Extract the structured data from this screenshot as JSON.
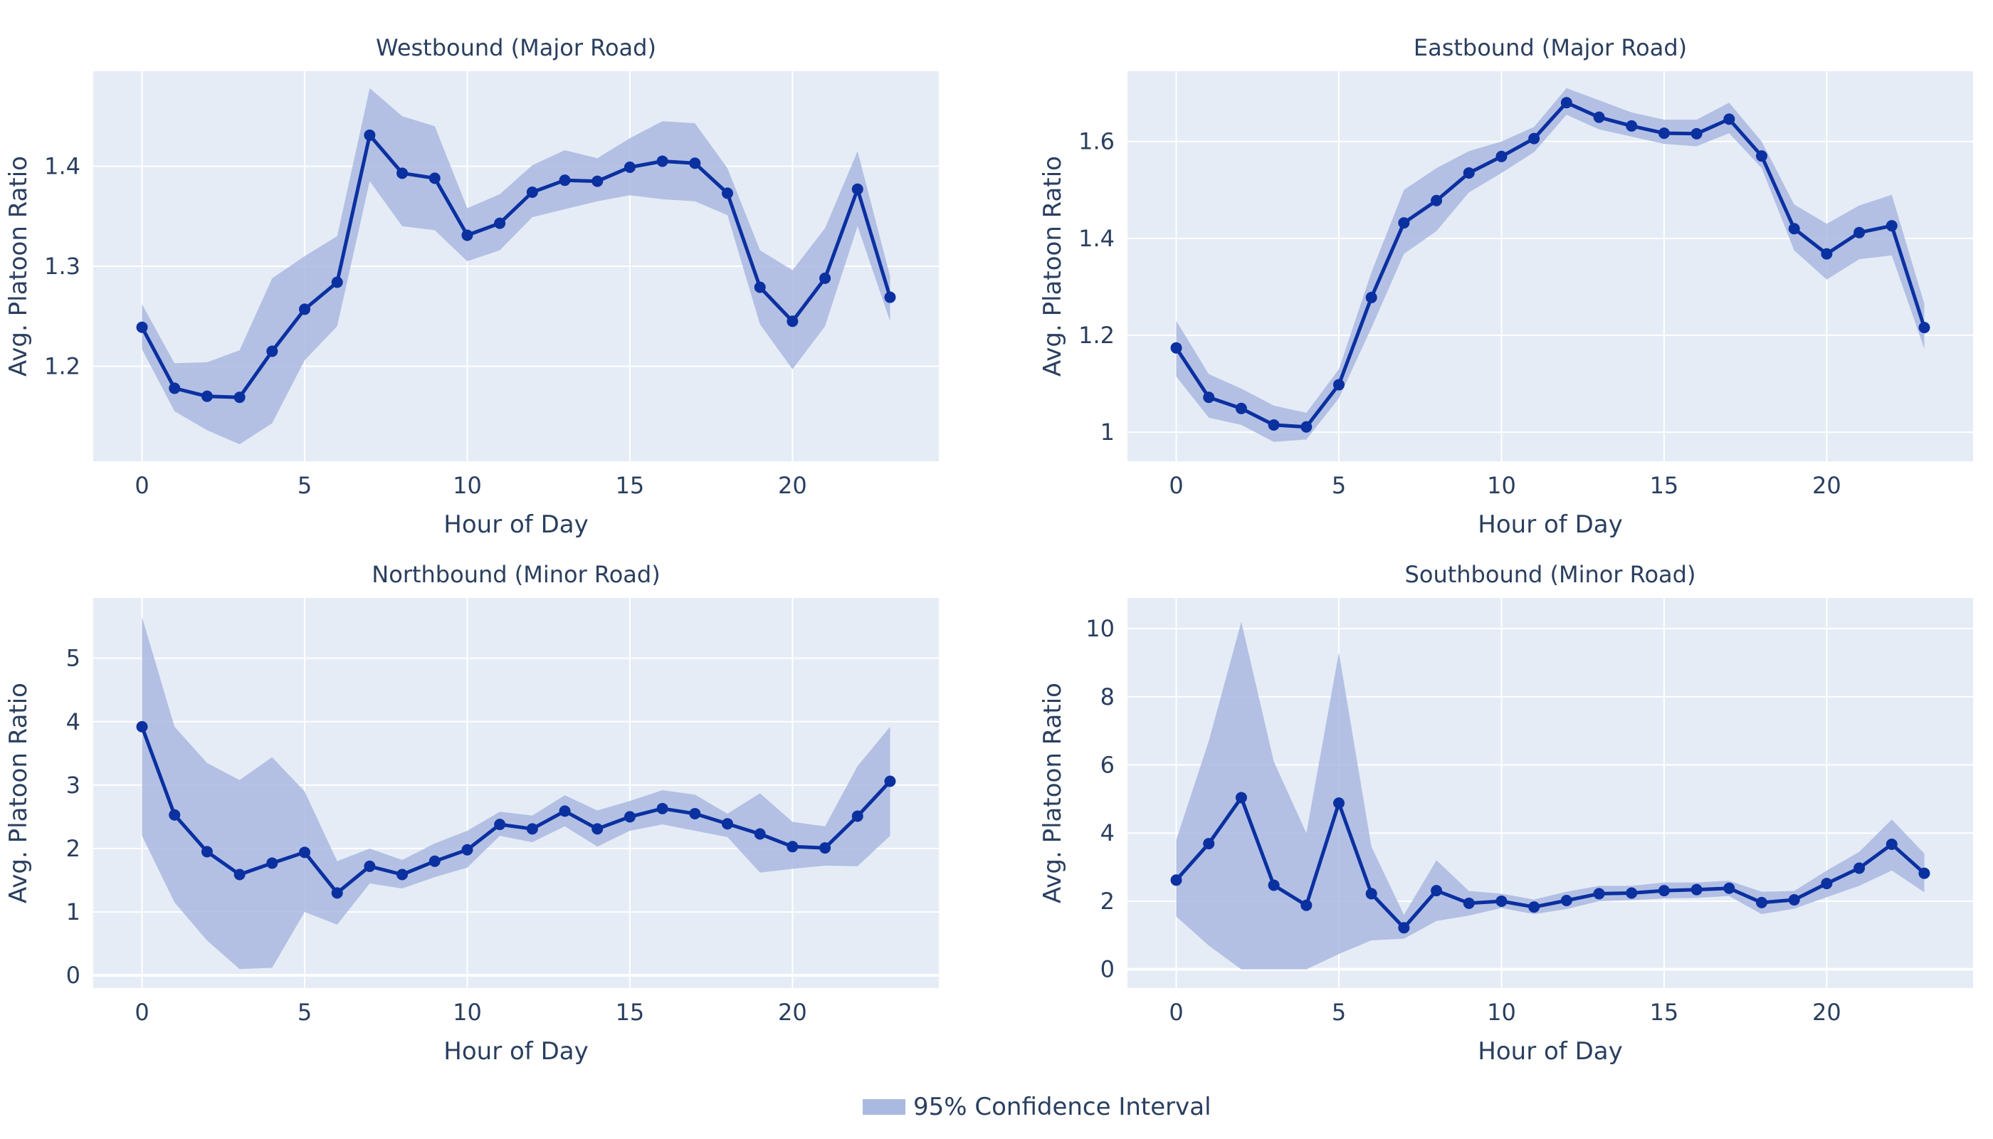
{
  "colors": {
    "plot_bg": "#e5ecf6",
    "grid": "#ffffff",
    "line": "#0b30a0",
    "band": "#aab9e0",
    "text": "#2a3f5f"
  },
  "legend": {
    "ci_label": "95% Confidence Interval",
    "placement": "bottom-center"
  },
  "chart_data": [
    {
      "type": "line",
      "title": "Westbound (Major Road)",
      "xlabel": "Hour of Day",
      "ylabel": "Avg. Platoon Ratio",
      "xlim": [
        -1.5,
        24.5
      ],
      "ylim": [
        1.105,
        1.495
      ],
      "xticks": [
        0,
        5,
        10,
        15,
        20
      ],
      "yticks": [
        1.2,
        1.3,
        1.4
      ],
      "ytick_labels": [
        "1.2",
        "1.3",
        "1.4"
      ],
      "x": [
        0,
        1,
        2,
        3,
        4,
        5,
        6,
        7,
        8,
        9,
        10,
        11,
        12,
        13,
        14,
        15,
        16,
        17,
        18,
        19,
        20,
        21,
        22,
        23
      ],
      "y": [
        1.239,
        1.178,
        1.17,
        1.169,
        1.215,
        1.257,
        1.284,
        1.431,
        1.393,
        1.388,
        1.331,
        1.343,
        1.374,
        1.386,
        1.385,
        1.399,
        1.405,
        1.403,
        1.373,
        1.279,
        1.245,
        1.288,
        1.377,
        1.269
      ],
      "ci_upper": [
        1.262,
        1.203,
        1.204,
        1.216,
        1.288,
        1.31,
        1.33,
        1.478,
        1.45,
        1.44,
        1.358,
        1.372,
        1.401,
        1.416,
        1.408,
        1.428,
        1.445,
        1.443,
        1.398,
        1.316,
        1.296,
        1.338,
        1.415,
        1.29
      ],
      "ci_lower": [
        1.217,
        1.155,
        1.136,
        1.122,
        1.143,
        1.206,
        1.24,
        1.385,
        1.34,
        1.336,
        1.305,
        1.316,
        1.349,
        1.357,
        1.365,
        1.371,
        1.367,
        1.365,
        1.351,
        1.242,
        1.197,
        1.24,
        1.34,
        1.245
      ]
    },
    {
      "type": "line",
      "title": "Eastbound (Major Road)",
      "xlabel": "Hour of Day",
      "ylabel": "Avg. Platoon Ratio",
      "xlim": [
        -1.5,
        24.5
      ],
      "ylim": [
        0.94,
        1.745
      ],
      "xticks": [
        0,
        5,
        10,
        15,
        20
      ],
      "yticks": [
        1.0,
        1.2,
        1.4,
        1.6
      ],
      "ytick_labels": [
        "1",
        "1.2",
        "1.4",
        "1.6"
      ],
      "x": [
        0,
        1,
        2,
        3,
        4,
        5,
        6,
        7,
        8,
        9,
        10,
        11,
        12,
        13,
        14,
        15,
        16,
        17,
        18,
        19,
        20,
        21,
        22,
        23
      ],
      "y": [
        1.174,
        1.072,
        1.049,
        1.015,
        1.011,
        1.098,
        1.278,
        1.432,
        1.478,
        1.535,
        1.569,
        1.606,
        1.68,
        1.65,
        1.632,
        1.617,
        1.616,
        1.646,
        1.57,
        1.42,
        1.368,
        1.412,
        1.426,
        1.216
      ],
      "ci_upper": [
        1.23,
        1.12,
        1.09,
        1.055,
        1.04,
        1.13,
        1.33,
        1.5,
        1.545,
        1.58,
        1.6,
        1.63,
        1.71,
        1.685,
        1.66,
        1.645,
        1.645,
        1.68,
        1.6,
        1.47,
        1.43,
        1.468,
        1.49,
        1.265
      ],
      "ci_lower": [
        1.115,
        1.03,
        1.015,
        0.98,
        0.985,
        1.07,
        1.215,
        1.368,
        1.415,
        1.495,
        1.535,
        1.578,
        1.655,
        1.625,
        1.61,
        1.595,
        1.59,
        1.617,
        1.545,
        1.375,
        1.315,
        1.357,
        1.365,
        1.172
      ]
    },
    {
      "type": "line",
      "title": "Northbound (Minor Road)",
      "xlabel": "Hour of Day",
      "ylabel": "Avg. Platoon Ratio",
      "xlim": [
        -1.5,
        24.5
      ],
      "ylim": [
        -0.2,
        5.95
      ],
      "xticks": [
        0,
        5,
        10,
        15,
        20
      ],
      "yticks": [
        0,
        1,
        2,
        3,
        4,
        5
      ],
      "ytick_labels": [
        "0",
        "1",
        "2",
        "3",
        "4",
        "5"
      ],
      "x": [
        0,
        1,
        2,
        3,
        4,
        5,
        6,
        7,
        8,
        9,
        10,
        11,
        12,
        13,
        14,
        15,
        16,
        17,
        18,
        19,
        20,
        21,
        22,
        23
      ],
      "y": [
        3.92,
        2.53,
        1.95,
        1.59,
        1.77,
        1.94,
        1.3,
        1.72,
        1.59,
        1.8,
        1.98,
        2.38,
        2.31,
        2.59,
        2.31,
        2.5,
        2.63,
        2.55,
        2.39,
        2.23,
        2.03,
        2.01,
        2.51,
        3.06
      ],
      "ci_upper": [
        5.65,
        3.92,
        3.35,
        3.08,
        3.44,
        2.9,
        1.8,
        2.0,
        1.82,
        2.08,
        2.28,
        2.58,
        2.52,
        2.84,
        2.6,
        2.75,
        2.92,
        2.85,
        2.55,
        2.87,
        2.42,
        2.35,
        3.3,
        3.92
      ],
      "ci_lower": [
        2.2,
        1.15,
        0.55,
        0.1,
        0.12,
        1.0,
        0.8,
        1.45,
        1.37,
        1.55,
        1.7,
        2.2,
        2.1,
        2.35,
        2.03,
        2.28,
        2.38,
        2.28,
        2.18,
        1.62,
        1.68,
        1.73,
        1.72,
        2.2
      ]
    },
    {
      "type": "line",
      "title": "Southbound (Minor Road)",
      "xlabel": "Hour of Day",
      "ylabel": "Avg. Platoon Ratio",
      "xlim": [
        -1.5,
        24.5
      ],
      "ylim": [
        -0.55,
        10.9
      ],
      "xticks": [
        0,
        5,
        10,
        15,
        20
      ],
      "yticks": [
        0,
        2,
        4,
        6,
        8,
        10
      ],
      "ytick_labels": [
        "0",
        "2",
        "4",
        "6",
        "8",
        "10"
      ],
      "x": [
        0,
        1,
        2,
        3,
        4,
        5,
        6,
        7,
        8,
        9,
        10,
        11,
        12,
        13,
        14,
        15,
        16,
        17,
        18,
        19,
        20,
        21,
        22,
        23
      ],
      "y": [
        2.62,
        3.69,
        5.04,
        2.47,
        1.88,
        4.88,
        2.22,
        1.22,
        2.31,
        1.94,
        2.0,
        1.83,
        2.02,
        2.22,
        2.24,
        2.31,
        2.34,
        2.38,
        1.96,
        2.04,
        2.52,
        2.97,
        3.67,
        2.82
      ],
      "ci_upper": [
        3.8,
        6.7,
        10.2,
        6.1,
        4.0,
        9.3,
        3.6,
        1.6,
        3.2,
        2.3,
        2.22,
        2.05,
        2.28,
        2.45,
        2.45,
        2.55,
        2.55,
        2.6,
        2.28,
        2.3,
        2.9,
        3.45,
        4.4,
        3.4
      ],
      "ci_lower": [
        1.55,
        0.7,
        0.0,
        0.0,
        0.0,
        0.45,
        0.85,
        0.9,
        1.42,
        1.58,
        1.8,
        1.62,
        1.77,
        2.0,
        2.03,
        2.08,
        2.1,
        2.15,
        1.62,
        1.78,
        2.12,
        2.45,
        2.9,
        2.26
      ]
    }
  ]
}
